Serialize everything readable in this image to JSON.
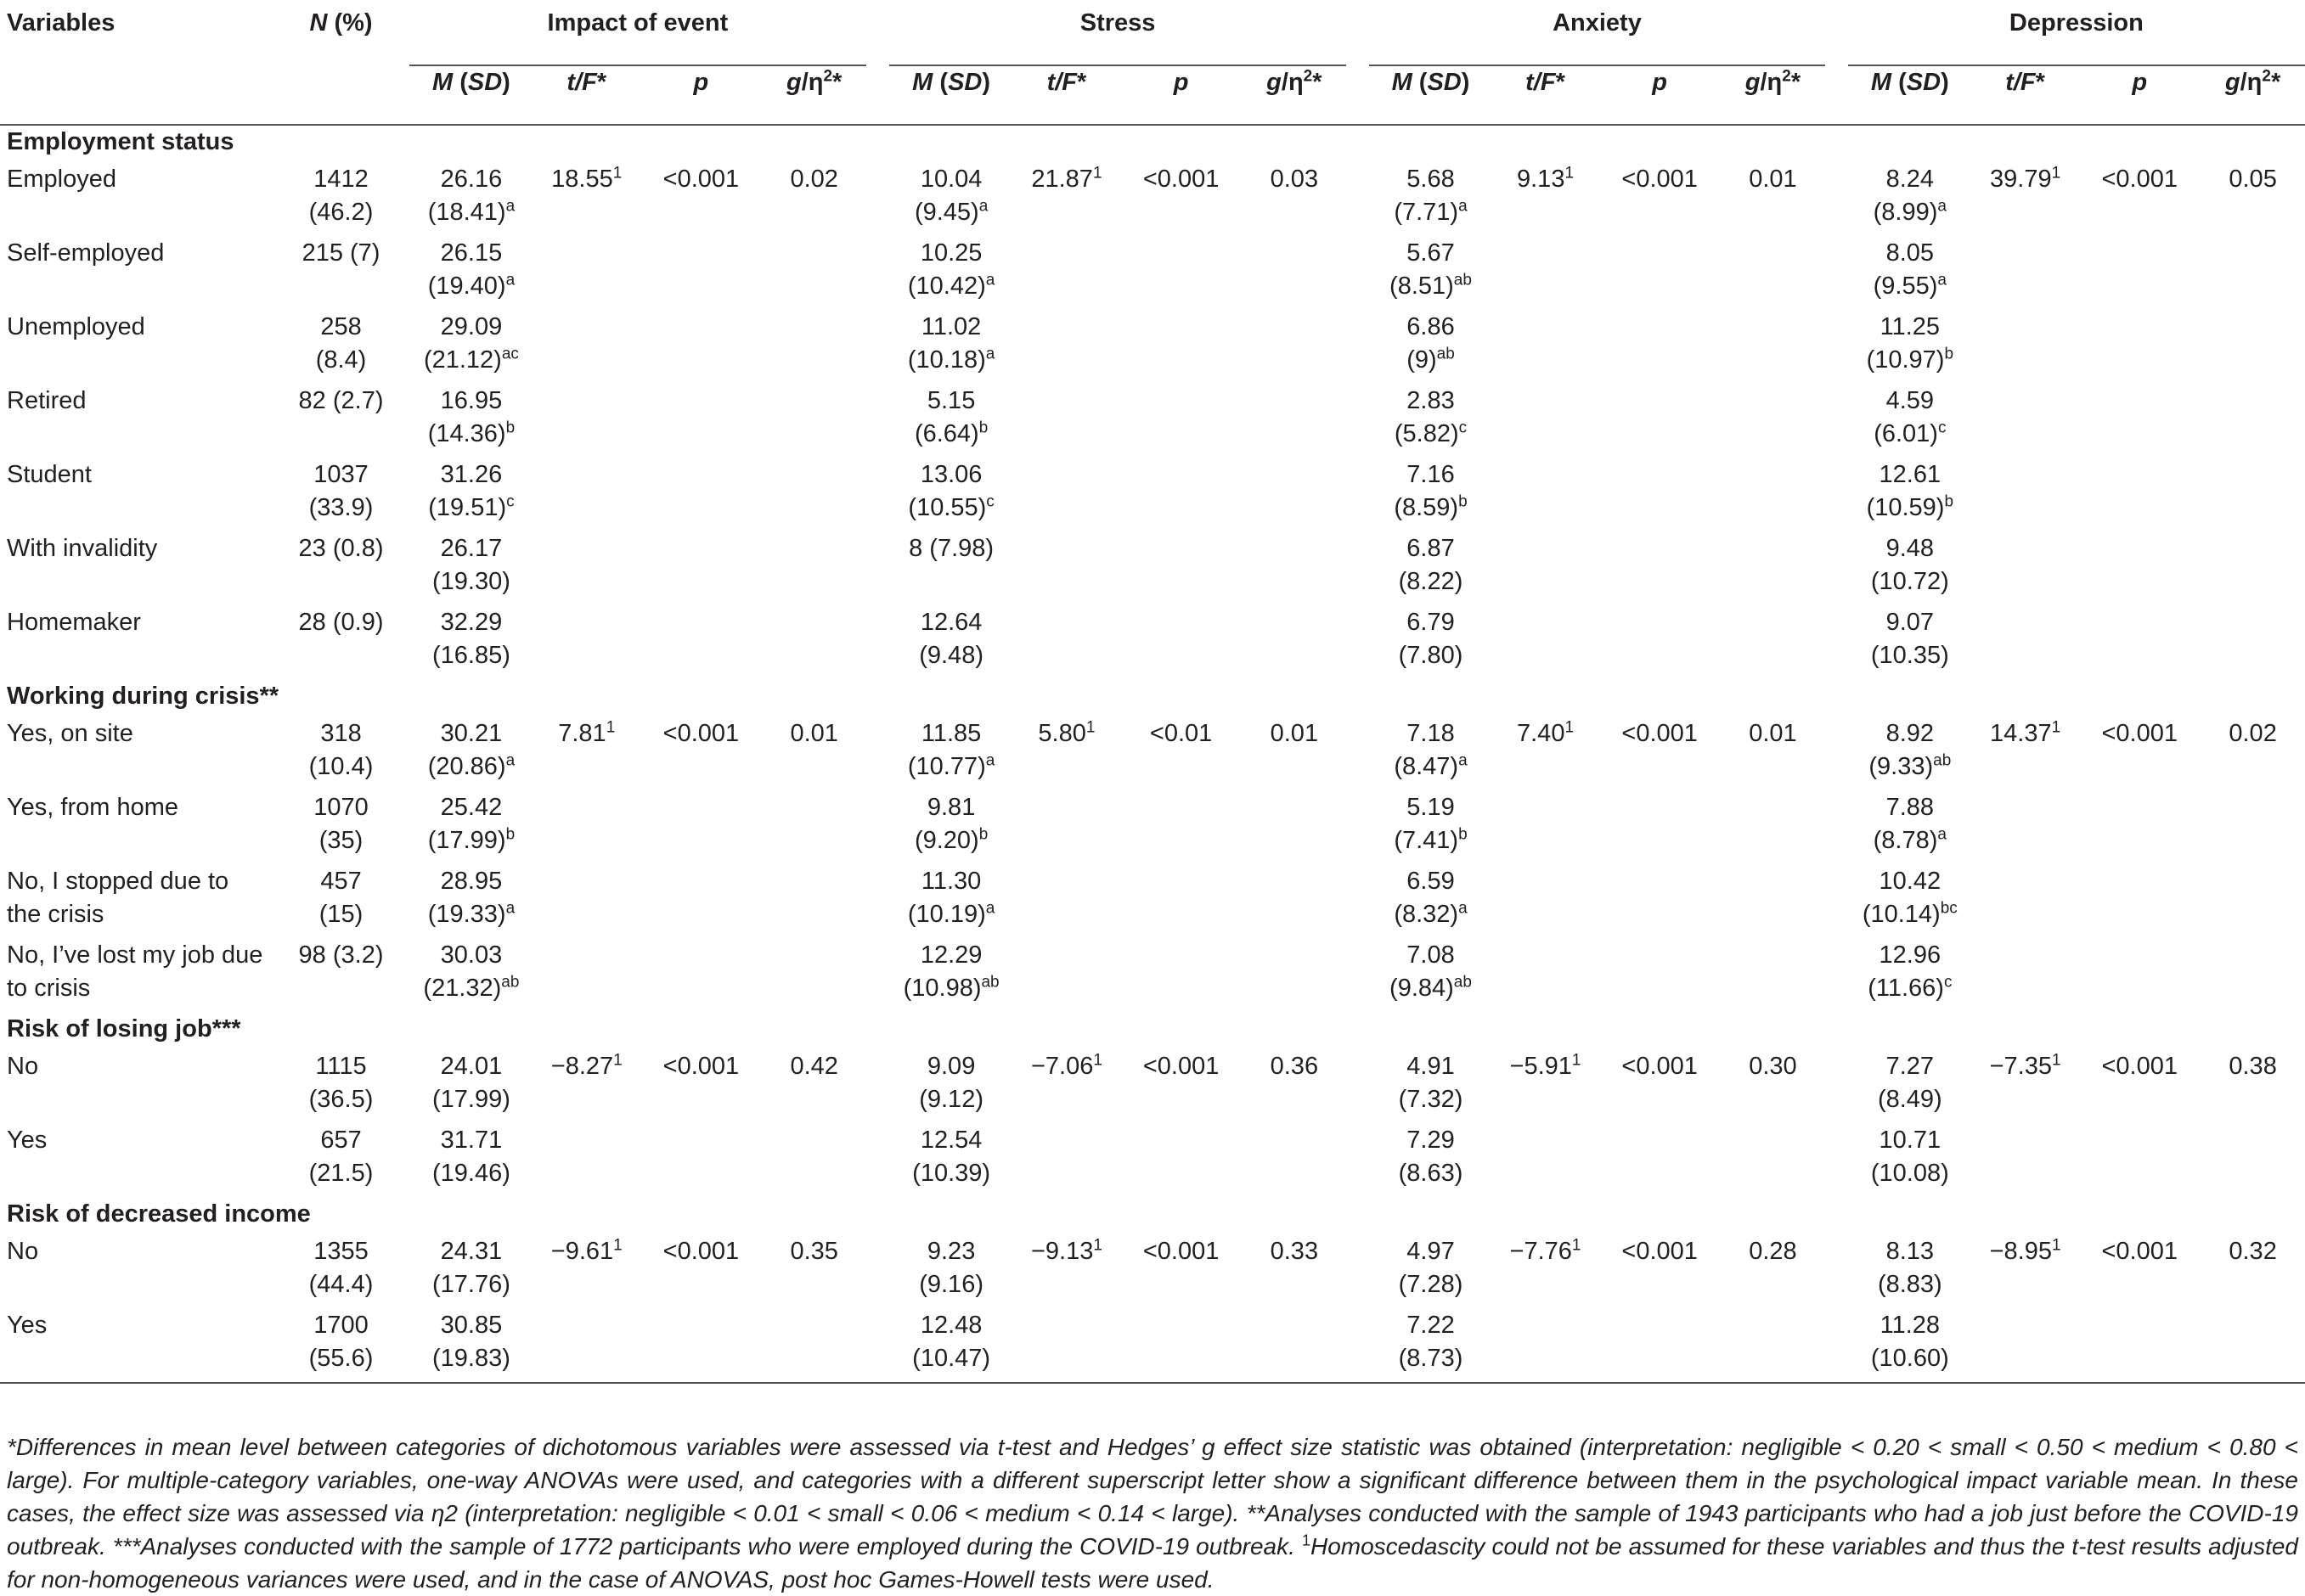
{
  "headers": {
    "variables": "Variables",
    "n": "N (%)",
    "groups": [
      "Impact of event",
      "Stress",
      "Anxiety",
      "Depression"
    ],
    "sub": {
      "m": "M (SD)",
      "t": "t/F*",
      "p": "p",
      "g": "g/η2*"
    }
  },
  "sections": [
    {
      "title": "Employment status",
      "rows": [
        {
          "label": "Employed",
          "n1": "1412",
          "n2": "(46.2)",
          "ie": {
            "m1": "26.16",
            "m2": "(18.41)",
            "sup": "a",
            "t": "18.55",
            "tsup": "1",
            "p": "<0.001",
            "g": "0.02"
          },
          "st": {
            "m1": "10.04",
            "m2": "(9.45)",
            "sup": "a",
            "t": "21.87",
            "tsup": "1",
            "p": "<0.001",
            "g": "0.03"
          },
          "an": {
            "m1": "5.68",
            "m2": "(7.71)",
            "sup": "a",
            "t": "9.13",
            "tsup": "1",
            "p": "<0.001",
            "g": "0.01"
          },
          "de": {
            "m1": "8.24",
            "m2": "(8.99)",
            "sup": "a",
            "t": "39.79",
            "tsup": "1",
            "p": "<0.001",
            "g": "0.05"
          }
        },
        {
          "label": "Self-employed",
          "n1": "215 (7)",
          "n2": "",
          "ie": {
            "m1": "26.15",
            "m2": "(19.40)",
            "sup": "a"
          },
          "st": {
            "m1": "10.25",
            "m2": "(10.42)",
            "sup": "a"
          },
          "an": {
            "m1": "5.67",
            "m2": "(8.51)",
            "sup": "ab"
          },
          "de": {
            "m1": "8.05",
            "m2": "(9.55)",
            "sup": "a"
          }
        },
        {
          "label": "Unemployed",
          "n1": "258",
          "n2": "(8.4)",
          "ie": {
            "m1": "29.09",
            "m2": "(21.12)",
            "sup": "ac"
          },
          "st": {
            "m1": "11.02",
            "m2": "(10.18)",
            "sup": "a"
          },
          "an": {
            "m1": "6.86",
            "m2": "(9)",
            "sup": "ab"
          },
          "de": {
            "m1": "11.25",
            "m2": "(10.97)",
            "sup": "b"
          }
        },
        {
          "label": "Retired",
          "n1": "82 (2.7)",
          "n2": "",
          "ie": {
            "m1": "16.95",
            "m2": "(14.36)",
            "sup": "b"
          },
          "st": {
            "m1": "5.15",
            "m2": "(6.64)",
            "sup": "b"
          },
          "an": {
            "m1": "2.83",
            "m2": "(5.82)",
            "sup": "c"
          },
          "de": {
            "m1": "4.59",
            "m2": "(6.01)",
            "sup": "c"
          }
        },
        {
          "label": "Student",
          "n1": "1037",
          "n2": "(33.9)",
          "ie": {
            "m1": "31.26",
            "m2": "(19.51)",
            "sup": "c"
          },
          "st": {
            "m1": "13.06",
            "m2": "(10.55)",
            "sup": "c"
          },
          "an": {
            "m1": "7.16",
            "m2": "(8.59)",
            "sup": "b"
          },
          "de": {
            "m1": "12.61",
            "m2": "(10.59)",
            "sup": "b"
          }
        },
        {
          "label": "With invalidity",
          "n1": "23 (0.8)",
          "n2": "",
          "ie": {
            "m1": "26.17",
            "m2": "(19.30)",
            "sup": ""
          },
          "st": {
            "m1": "8 (7.98)",
            "m2": "",
            "sup": ""
          },
          "an": {
            "m1": "6.87",
            "m2": "(8.22)",
            "sup": ""
          },
          "de": {
            "m1": "9.48",
            "m2": "(10.72)",
            "sup": ""
          }
        },
        {
          "label": "Homemaker",
          "n1": "28 (0.9)",
          "n2": "",
          "ie": {
            "m1": "32.29",
            "m2": "(16.85)",
            "sup": ""
          },
          "st": {
            "m1": "12.64",
            "m2": "(9.48)",
            "sup": ""
          },
          "an": {
            "m1": "6.79",
            "m2": "(7.80)",
            "sup": ""
          },
          "de": {
            "m1": "9.07",
            "m2": "(10.35)",
            "sup": ""
          }
        }
      ]
    },
    {
      "title": "Working during crisis**",
      "rows": [
        {
          "label": "Yes, on site",
          "n1": "318",
          "n2": "(10.4)",
          "ie": {
            "m1": "30.21",
            "m2": "(20.86)",
            "sup": "a",
            "t": "7.81",
            "tsup": "1",
            "p": "<0.001",
            "g": "0.01"
          },
          "st": {
            "m1": "11.85",
            "m2": "(10.77)",
            "sup": "a",
            "t": "5.80",
            "tsup": "1",
            "p": "<0.01",
            "g": "0.01"
          },
          "an": {
            "m1": "7.18",
            "m2": "(8.47)",
            "sup": "a",
            "t": "7.40",
            "tsup": "1",
            "p": "<0.001",
            "g": "0.01"
          },
          "de": {
            "m1": "8.92",
            "m2": "(9.33)",
            "sup": "ab",
            "t": "14.37",
            "tsup": "1",
            "p": "<0.001",
            "g": "0.02"
          }
        },
        {
          "label": "Yes, from home",
          "n1": "1070",
          "n2": "(35)",
          "ie": {
            "m1": "25.42",
            "m2": "(17.99)",
            "sup": "b"
          },
          "st": {
            "m1": "9.81",
            "m2": "(9.20)",
            "sup": "b"
          },
          "an": {
            "m1": "5.19",
            "m2": "(7.41)",
            "sup": "b"
          },
          "de": {
            "m1": "7.88",
            "m2": "(8.78)",
            "sup": "a"
          }
        },
        {
          "label": "No, I stopped due to",
          "label2": "the crisis",
          "n1": "457",
          "n2": "(15)",
          "ie": {
            "m1": "28.95",
            "m2": "(19.33)",
            "sup": "a"
          },
          "st": {
            "m1": "11.30",
            "m2": "(10.19)",
            "sup": "a"
          },
          "an": {
            "m1": "6.59",
            "m2": "(8.32)",
            "sup": "a"
          },
          "de": {
            "m1": "10.42",
            "m2": "(10.14)",
            "sup": "bc"
          }
        },
        {
          "label": "No, I’ve lost my job due",
          "label2": "to crisis",
          "n1": "98 (3.2)",
          "n2": "",
          "ie": {
            "m1": "30.03",
            "m2": "(21.32)",
            "sup": "ab"
          },
          "st": {
            "m1": "12.29",
            "m2": "(10.98)",
            "sup": "ab"
          },
          "an": {
            "m1": "7.08",
            "m2": "(9.84)",
            "sup": "ab"
          },
          "de": {
            "m1": "12.96",
            "m2": "(11.66)",
            "sup": "c"
          }
        }
      ]
    },
    {
      "title": "Risk of losing job***",
      "rows": [
        {
          "label": "No",
          "n1": "1115",
          "n2": "(36.5)",
          "ie": {
            "m1": "24.01",
            "m2": "(17.99)",
            "sup": "",
            "t": "−8.27",
            "tsup": "1",
            "p": "<0.001",
            "g": "0.42"
          },
          "st": {
            "m1": "9.09",
            "m2": "(9.12)",
            "sup": "",
            "t": "−7.06",
            "tsup": "1",
            "p": "<0.001",
            "g": "0.36"
          },
          "an": {
            "m1": "4.91",
            "m2": "(7.32)",
            "sup": "",
            "t": "−5.91",
            "tsup": "1",
            "p": "<0.001",
            "g": "0.30"
          },
          "de": {
            "m1": "7.27",
            "m2": "(8.49)",
            "sup": "",
            "t": "−7.35",
            "tsup": "1",
            "p": "<0.001",
            "g": "0.38"
          }
        },
        {
          "label": "Yes",
          "n1": "657",
          "n2": "(21.5)",
          "ie": {
            "m1": "31.71",
            "m2": "(19.46)",
            "sup": ""
          },
          "st": {
            "m1": "12.54",
            "m2": "(10.39)",
            "sup": ""
          },
          "an": {
            "m1": "7.29",
            "m2": "(8.63)",
            "sup": ""
          },
          "de": {
            "m1": "10.71",
            "m2": "(10.08)",
            "sup": ""
          }
        }
      ]
    },
    {
      "title": "Risk of decreased income",
      "rows": [
        {
          "label": "No",
          "n1": "1355",
          "n2": "(44.4)",
          "ie": {
            "m1": "24.31",
            "m2": "(17.76)",
            "sup": "",
            "t": "−9.61",
            "tsup": "1",
            "p": "<0.001",
            "g": "0.35"
          },
          "st": {
            "m1": "9.23",
            "m2": "(9.16)",
            "sup": "",
            "t": "−9.13",
            "tsup": "1",
            "p": "<0.001",
            "g": "0.33"
          },
          "an": {
            "m1": "4.97",
            "m2": "(7.28)",
            "sup": "",
            "t": "−7.76",
            "tsup": "1",
            "p": "<0.001",
            "g": "0.28"
          },
          "de": {
            "m1": "8.13",
            "m2": "(8.83)",
            "sup": "",
            "t": "−8.95",
            "tsup": "1",
            "p": "<0.001",
            "g": "0.32"
          }
        },
        {
          "label": "Yes",
          "n1": "1700",
          "n2": "(55.6)",
          "ie": {
            "m1": "30.85",
            "m2": "(19.83)",
            "sup": ""
          },
          "st": {
            "m1": "12.48",
            "m2": "(10.47)",
            "sup": ""
          },
          "an": {
            "m1": "7.22",
            "m2": "(8.73)",
            "sup": ""
          },
          "de": {
            "m1": "11.28",
            "m2": "(10.60)",
            "sup": ""
          }
        }
      ]
    }
  ],
  "footnote": {
    "part1": "*Differences in mean level between categories of dichotomous variables were assessed via t-test and Hedges’ g effect size statistic was obtained (interpretation: negligible < 0.20 < small < 0.50 < medium < 0.80 < large). For multiple-category variables, one-way ANOVAs were used, and categories with a different superscript letter show a significant difference between them in the psychological impact variable mean. In these cases, the effect size was assessed via η2 (interpretation: negligible < 0.01 < small < 0.06 < medium < 0.14 < large). **Analyses conducted with the sample of 1943 participants who had a job just before the COVID-19 outbreak. ***Analyses conducted with the sample of 1772 participants who were employed during the COVID-19 outbreak. ",
    "sup": "1",
    "part2": "Homoscedascity could not be assumed for these variables and thus the t-test results adjusted for non-homogeneous variances were used, and in the case of ANOVAS, post hoc Games-Howell tests were used."
  }
}
